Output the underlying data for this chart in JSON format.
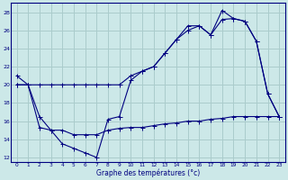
{
  "xlabel": "Graphe des températures (°c)",
  "bg_color": "#cce8e8",
  "grid_color": "#aacccc",
  "line_color": "#000080",
  "xlim": [
    -0.5,
    23.5
  ],
  "ylim": [
    11.5,
    29.0
  ],
  "xticks": [
    0,
    1,
    2,
    3,
    4,
    5,
    6,
    7,
    8,
    9,
    10,
    11,
    12,
    13,
    14,
    15,
    16,
    17,
    18,
    19,
    20,
    21,
    22,
    23
  ],
  "yticks": [
    12,
    14,
    16,
    18,
    20,
    22,
    24,
    26,
    28
  ],
  "series1_x": [
    0,
    1,
    2,
    3,
    4,
    5,
    6,
    7,
    8,
    9,
    10,
    11,
    12,
    13,
    14,
    15,
    16,
    17,
    18,
    19,
    20,
    21,
    22,
    23
  ],
  "series1_y": [
    21,
    20,
    16.5,
    15,
    13.5,
    13,
    12.5,
    12,
    16.2,
    16.5,
    20.5,
    21.5,
    22,
    23.5,
    25,
    26.5,
    26.5,
    25.5,
    28.2,
    27.3,
    27.0,
    24.8,
    19.0,
    16.5
  ],
  "series2_x": [
    0,
    1,
    2,
    3,
    4,
    5,
    6,
    7,
    8,
    9,
    10,
    11,
    12,
    13,
    14,
    15,
    16,
    17,
    18,
    19,
    20,
    21,
    22,
    23
  ],
  "series2_y": [
    20,
    20,
    20,
    20,
    20,
    20,
    20,
    20,
    20,
    20,
    21,
    21.5,
    22,
    23.5,
    25,
    26,
    26.5,
    25.5,
    27.2,
    27.3,
    27.0,
    24.8,
    19.0,
    16.5
  ],
  "series3_x": [
    0,
    1,
    2,
    3,
    4,
    5,
    6,
    7,
    8,
    9,
    10,
    11,
    12,
    13,
    14,
    15,
    16,
    17,
    18,
    19,
    20,
    21,
    22,
    23
  ],
  "series3_y": [
    20,
    20,
    15.3,
    15,
    15,
    14.5,
    14.5,
    14.5,
    15,
    15.2,
    15.3,
    15.3,
    15.5,
    15.7,
    15.8,
    16.0,
    16.0,
    16.2,
    16.3,
    16.5,
    16.5,
    16.5,
    16.5,
    16.5
  ]
}
